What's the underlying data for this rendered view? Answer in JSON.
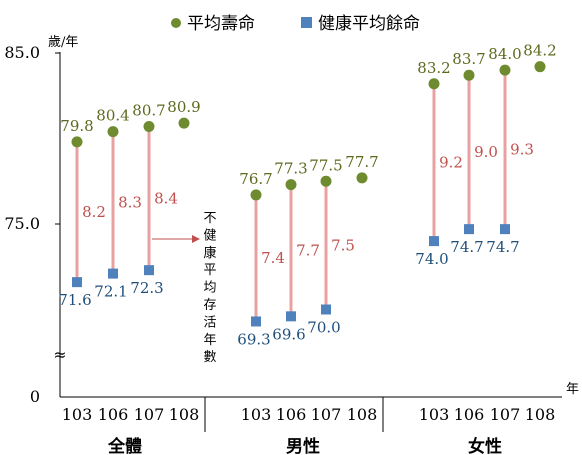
{
  "chart_data": {
    "type": "line",
    "y_unit": "歲/年",
    "x_unit": "年",
    "ylim": [
      0,
      85.0
    ],
    "y_ticks": [
      "0",
      "75.0",
      "85.0"
    ],
    "axis_break_symbol": "≈",
    "legend": [
      {
        "name": "平均壽命",
        "color": "#6e8b2f",
        "marker": "circle"
      },
      {
        "name": "健康平均餘命",
        "color": "#4f81bd",
        "marker": "square"
      }
    ],
    "gap_color": "#e8a0a0",
    "annotation": "不健康平均存活年數",
    "groups": [
      {
        "name": "全體",
        "years": [
          "103",
          "106",
          "107",
          "108"
        ],
        "life_expectancy": [
          79.8,
          80.4,
          80.7,
          80.9
        ],
        "life_labels": [
          "79.8",
          "80.4",
          "80.7",
          "80.9"
        ],
        "healthy_life_expectancy": [
          71.6,
          72.1,
          72.3,
          null
        ],
        "health_labels": [
          "71.6",
          "72.1",
          "72.3",
          ""
        ],
        "unhealthy_labels": [
          "8.2",
          "8.3",
          "8.4",
          ""
        ]
      },
      {
        "name": "男性",
        "years": [
          "103",
          "106",
          "107",
          "108"
        ],
        "life_expectancy": [
          76.7,
          77.3,
          77.5,
          77.7
        ],
        "life_labels": [
          "76.7",
          "77.3",
          "77.5",
          "77.7"
        ],
        "healthy_life_expectancy": [
          69.3,
          69.6,
          70.0,
          null
        ],
        "health_labels": [
          "69.3",
          "69.6",
          "70.0",
          ""
        ],
        "unhealthy_labels": [
          "7.4",
          "7.7",
          "7.5",
          ""
        ]
      },
      {
        "name": "女性",
        "years": [
          "103",
          "106",
          "107",
          "108"
        ],
        "life_expectancy": [
          83.2,
          83.7,
          84.0,
          84.2
        ],
        "life_labels": [
          "83.2",
          "83.7",
          "84.0",
          "84.2"
        ],
        "healthy_life_expectancy": [
          74.0,
          74.7,
          74.7,
          null
        ],
        "health_labels": [
          "74.0",
          "74.7",
          "74.7",
          ""
        ],
        "unhealthy_labels": [
          "9.2",
          "9.0",
          "9.3",
          ""
        ]
      }
    ]
  }
}
